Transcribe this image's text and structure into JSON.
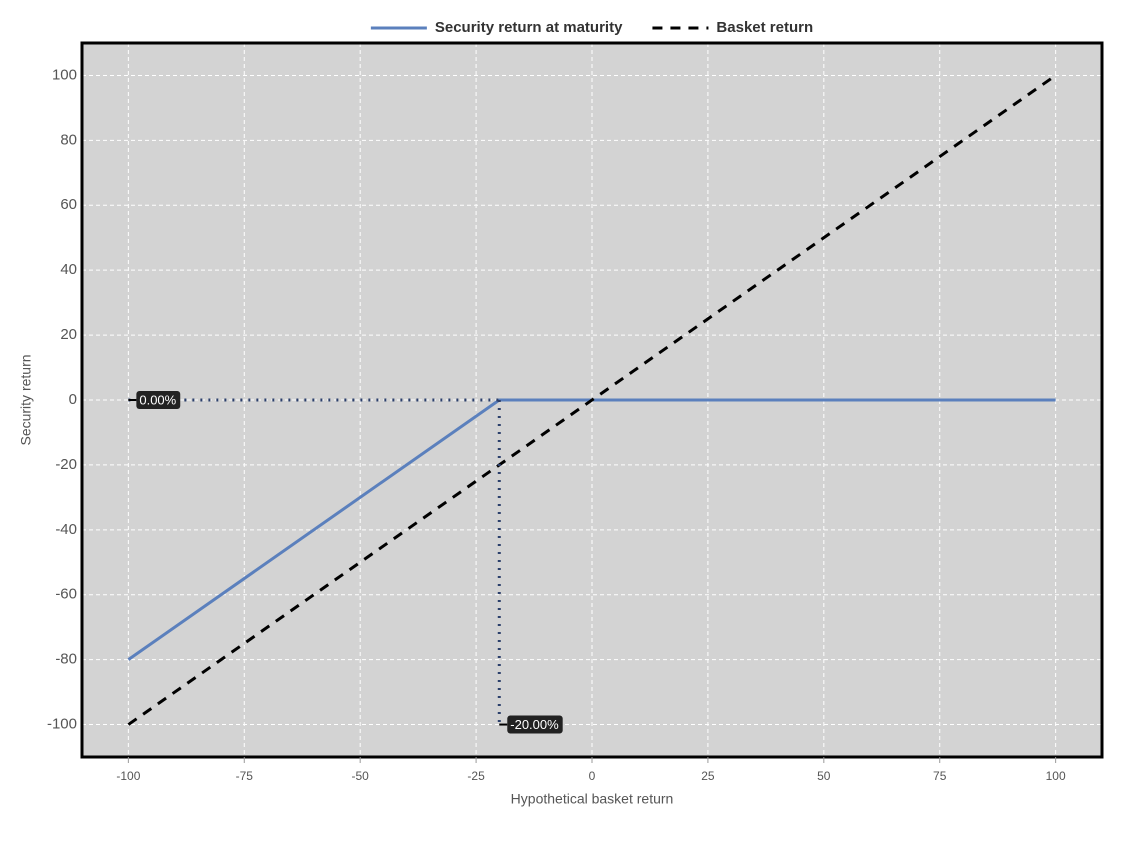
{
  "chart_data": {
    "type": "line",
    "x_label": "Hypothetical basket return",
    "y_label": "Security return",
    "xlim": [
      -110,
      110
    ],
    "ylim": [
      -110,
      110
    ],
    "xticks": [
      -100,
      -75,
      -50,
      -25,
      0,
      25,
      50,
      75,
      100
    ],
    "yticks": [
      -100,
      -80,
      -60,
      -40,
      -20,
      0,
      20,
      40,
      60,
      80,
      100
    ],
    "grid": true,
    "legend": "top",
    "series": [
      {
        "name": "Security return at maturity",
        "color": "#5b80bd",
        "dash": "solid",
        "x": [
          -100,
          -20,
          100
        ],
        "values": [
          -80,
          0,
          0
        ]
      },
      {
        "name": "Basket return",
        "color": "#000000",
        "dash": "dashed",
        "x": [
          -100,
          100
        ],
        "values": [
          -100,
          100
        ]
      }
    ],
    "markers": [
      {
        "axis": "y",
        "value": 0,
        "label": "0.00%"
      },
      {
        "axis": "x",
        "value": -20,
        "label": "-20.00%"
      }
    ]
  }
}
